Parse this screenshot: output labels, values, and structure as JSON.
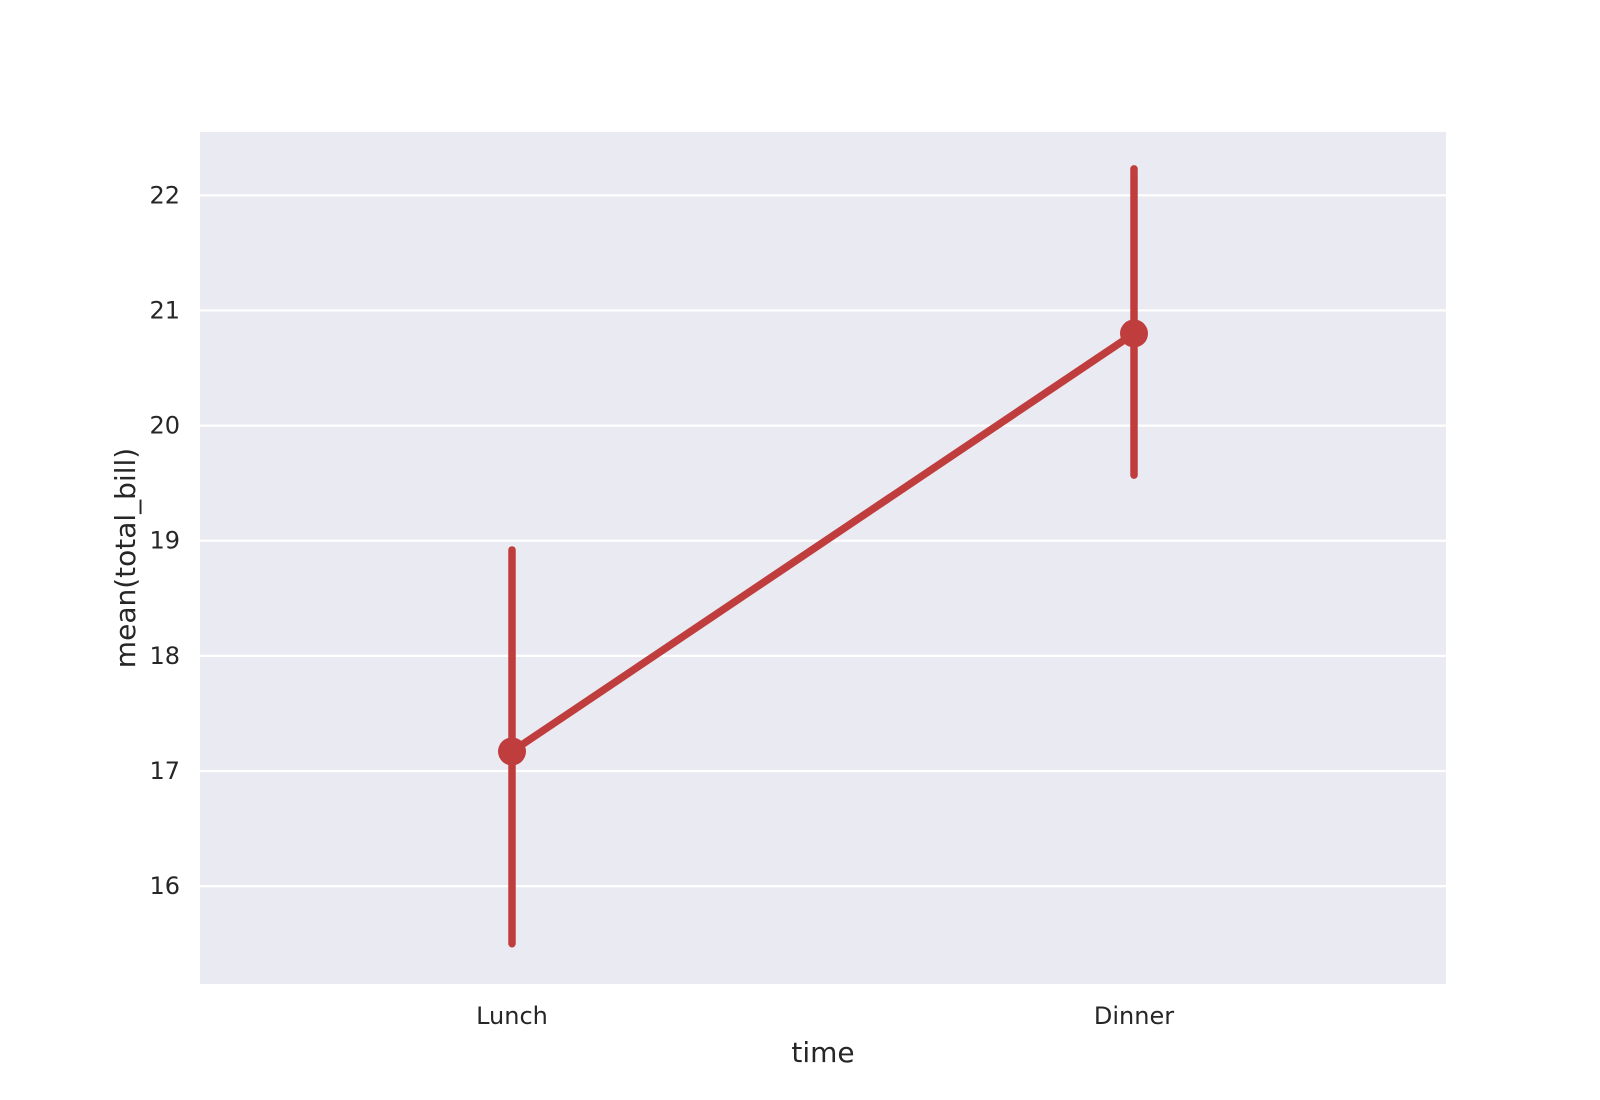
{
  "chart_data": {
    "type": "line",
    "categories": [
      "Lunch",
      "Dinner"
    ],
    "series": [
      {
        "values": [
          17.17,
          20.8
        ],
        "ci_low": [
          15.5,
          19.57
        ],
        "ci_high": [
          18.92,
          22.23
        ]
      }
    ],
    "xlabel": "time",
    "ylabel": "mean(total_bill)",
    "ylim": [
      15.15,
      22.55
    ],
    "yticks": [
      16,
      17,
      18,
      19,
      20,
      21,
      22
    ],
    "grid": true,
    "colors": {
      "series": "#c03d3e",
      "plot_background": "#eaeaf2",
      "grid": "#ffffff",
      "text": "#262626"
    }
  }
}
